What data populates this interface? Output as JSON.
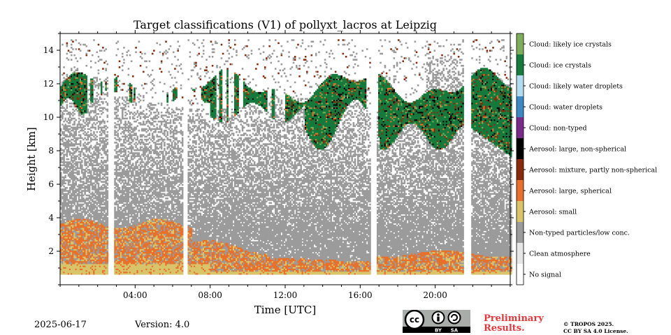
{
  "chart_data": {
    "type": "heatmap",
    "title": "Target classifications (V1) of pollyxt_lacros at Leipzig",
    "xlabel": "Time [UTC]",
    "ylabel": "Height [km]",
    "xlim": [
      0,
      24
    ],
    "ylim": [
      0,
      15
    ],
    "x_ticks": [
      4,
      8,
      12,
      16,
      20
    ],
    "x_tick_labels": [
      "04:00",
      "08:00",
      "12:00",
      "16:00",
      "20:00"
    ],
    "y_ticks": [
      2,
      4,
      6,
      8,
      10,
      12,
      14
    ],
    "y_tick_labels": [
      "2",
      "4",
      "6",
      "8",
      "10",
      "12",
      "14"
    ],
    "classes": [
      {
        "label": "No signal",
        "color": "#ffffff"
      },
      {
        "label": "Clean atmosphere",
        "color": "#e6e6e6"
      },
      {
        "label": "Non-typed particles/low conc.",
        "color": "#9b9b9b"
      },
      {
        "label": "Aerosol: small",
        "color": "#d9c46a"
      },
      {
        "label": "Aerosol: large, spherical",
        "color": "#e8702a"
      },
      {
        "label": "Aerosol: mixture, partly non-spherical",
        "color": "#8b2a0a"
      },
      {
        "label": "Aerosol: large, non-spherical",
        "color": "#000000"
      },
      {
        "label": "Cloud: non-typed",
        "color": "#7b2a8c"
      },
      {
        "label": "Cloud: water droplets",
        "color": "#3d89c6"
      },
      {
        "label": "Cloud: likely water droplets",
        "color": "#b4dcf0"
      },
      {
        "label": "Cloud: ice crystals",
        "color": "#157a3c"
      },
      {
        "label": "Cloud: likely ice crystals",
        "color": "#7fae5a"
      }
    ],
    "data_gaps_hours": [
      [
        2.55,
        2.85
      ],
      [
        6.5,
        6.8
      ],
      [
        16.5,
        16.85
      ],
      [
        21.5,
        21.85
      ]
    ],
    "layers": [
      {
        "class": "Aerosol: small",
        "from_height_km": 0.6,
        "to_height_km": 1.4,
        "time_range_hours": [
          0,
          24
        ]
      },
      {
        "class": "Aerosol: large, spherical",
        "from_height_km": 0.6,
        "to_height_km": 3.8,
        "time_range_hours": [
          0,
          24
        ]
      },
      {
        "class": "Non-typed particles/low conc.",
        "from_height_km": 1.0,
        "to_height_km": 12.5,
        "time_range_hours": [
          0,
          24
        ]
      },
      {
        "class": "Cloud: ice crystals",
        "from_height_km": 7.3,
        "to_height_km": 12.9,
        "time_range_hours": [
          0.0,
          24.0
        ]
      },
      {
        "class": "Aerosol: mixture, partly non-spherical",
        "from_height_km": 10.0,
        "to_height_km": 13.5,
        "time_range_hours": [
          0.0,
          24.0
        ]
      }
    ]
  },
  "footer": {
    "date": "2025-06-17",
    "version": "Version: 4.0"
  },
  "license": {
    "badge_cc": "cc",
    "badge_by": "BY",
    "badge_sa": "SA",
    "preliminary_line1": "Preliminary",
    "preliminary_line2": "Results.",
    "copyright_line1": "© TROPOS 2025.",
    "copyright_line2": "CC BY SA 4.0 License."
  }
}
